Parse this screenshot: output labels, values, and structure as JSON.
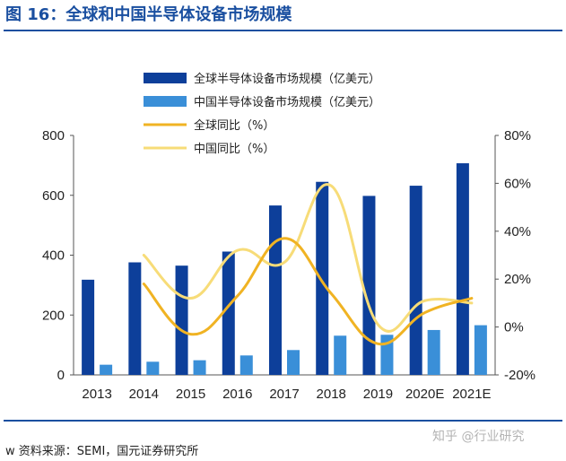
{
  "figure": {
    "title": "图 16：全球和中国半导体设备市场规模",
    "source": "w 资料来源：SEMI，国元证券研究所",
    "watermark": "知乎 @行业研究"
  },
  "colors": {
    "title": "#1a4fa0",
    "rule": "#1a4fa0",
    "global_bar": "#0d3f9a",
    "china_bar": "#3a8fd8",
    "global_line": "#f0b323",
    "china_line": "#f7dc78"
  },
  "chart_data": {
    "type": "bar",
    "categories": [
      "2013",
      "2014",
      "2015",
      "2016",
      "2017",
      "2018",
      "2019",
      "2020E",
      "2021E"
    ],
    "series": [
      {
        "name": "全球半导体设备市场规模（亿美元）",
        "kind": "bar",
        "axis": "left",
        "values": [
          318,
          376,
          365,
          412,
          566,
          645,
          598,
          632,
          707
        ]
      },
      {
        "name": "中国半导体设备市场规模（亿美元）",
        "kind": "bar",
        "axis": "left",
        "values": [
          34,
          44,
          49,
          65,
          83,
          131,
          134,
          150,
          166
        ]
      },
      {
        "name": "全球同比（%）",
        "kind": "line",
        "axis": "right",
        "values": [
          null,
          18,
          -3,
          13,
          37,
          14,
          -7,
          6,
          12
        ]
      },
      {
        "name": "中国同比（%）",
        "kind": "line",
        "axis": "right",
        "values": [
          null,
          30,
          12,
          32,
          27,
          59,
          1,
          11,
          10
        ]
      }
    ],
    "y_left": {
      "min": 0,
      "max": 800,
      "ticks": [
        "0",
        "200",
        "400",
        "600",
        "800"
      ]
    },
    "y_right": {
      "min": -20,
      "max": 80,
      "ticks": [
        "-20%",
        "0%",
        "20%",
        "40%",
        "60%",
        "80%"
      ]
    },
    "legend_position": "top-left",
    "grid": false
  }
}
